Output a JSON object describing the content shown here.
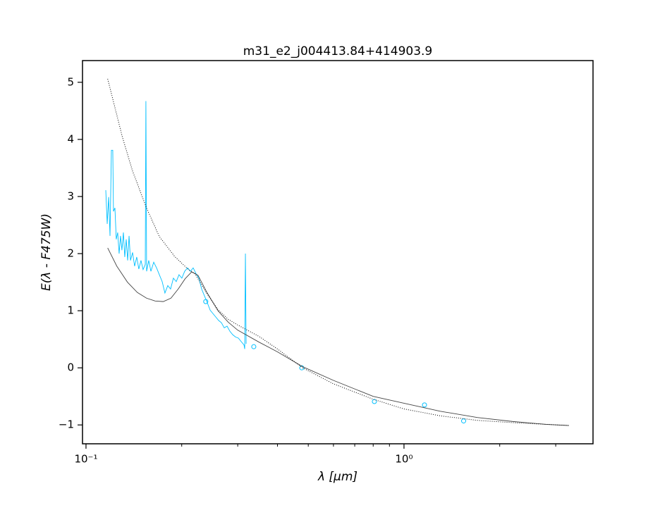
{
  "chart_data": {
    "type": "line",
    "title": "m31_e2_j004413.84+414903.9",
    "xlabel": "λ [μm]",
    "ylabel": "E(λ - F475W)",
    "xscale": "log",
    "xlim": [
      0.0975,
      3.93
    ],
    "ylim": [
      -1.33,
      5.38
    ],
    "xticks": [
      {
        "value": 0.1,
        "label": "10⁻¹"
      },
      {
        "value": 1,
        "label": "10⁰"
      }
    ],
    "xminorticks": [
      0.2,
      0.3,
      0.4,
      0.5,
      0.6,
      0.7,
      0.8,
      0.9,
      2,
      3
    ],
    "yticks": [
      {
        "value": -1,
        "label": "−1"
      },
      0,
      1,
      2,
      3,
      4,
      5
    ],
    "series": [
      {
        "style": "solid",
        "color": "#00bfff",
        "x": [
          0.1154,
          0.1166,
          0.1178,
          0.119,
          0.1202,
          0.1214,
          0.122,
          0.1233,
          0.1245,
          0.1258,
          0.1271,
          0.1284,
          0.1297,
          0.1311,
          0.1324,
          0.1338,
          0.1352,
          0.1366,
          0.138,
          0.1401,
          0.1422,
          0.1444,
          0.1466,
          0.1489,
          0.1512,
          0.1536,
          0.1543,
          0.1551,
          0.1575,
          0.16,
          0.1633,
          0.1667,
          0.1701,
          0.1736,
          0.1771,
          0.1808,
          0.1845,
          0.1883,
          0.1922,
          0.1961,
          0.2002,
          0.2043,
          0.2086,
          0.2129,
          0.2173,
          0.2218,
          0.2264,
          0.231,
          0.2358,
          0.2407,
          0.2457,
          0.2507,
          0.2559,
          0.2612,
          0.2666,
          0.2721,
          0.2777,
          0.2835,
          0.2893,
          0.2953,
          0.3014,
          0.3076,
          0.314,
          0.3156,
          0.3172,
          0.3188
        ],
        "values": [
          3.11,
          2.52,
          2.99,
          2.31,
          3.81,
          3.81,
          2.74,
          2.8,
          2.25,
          2.37,
          2.0,
          2.31,
          2.06,
          2.37,
          1.94,
          2.25,
          1.88,
          2.31,
          1.88,
          2.02,
          1.78,
          1.94,
          1.73,
          1.88,
          1.72,
          1.81,
          4.67,
          1.69,
          1.88,
          1.69,
          1.85,
          1.75,
          1.63,
          1.51,
          1.31,
          1.44,
          1.38,
          1.57,
          1.51,
          1.63,
          1.57,
          1.69,
          1.75,
          1.69,
          1.75,
          1.65,
          1.57,
          1.38,
          1.26,
          1.14,
          1.01,
          0.95,
          0.89,
          0.83,
          0.79,
          0.7,
          0.73,
          0.64,
          0.58,
          0.54,
          0.52,
          0.46,
          0.4,
          0.33,
          2.0,
          0.42
        ]
      },
      {
        "style": "markers",
        "color": "#00bfff",
        "x": [
          0.238,
          0.337,
          0.477,
          0.807,
          1.16,
          1.54
        ],
        "values": [
          1.16,
          0.37,
          0.0,
          -0.59,
          -0.65,
          -0.93
        ]
      },
      {
        "style": "solid",
        "color": "#444444",
        "x": [
          0.117,
          0.125,
          0.135,
          0.145,
          0.155,
          0.165,
          0.175,
          0.185,
          0.195,
          0.205,
          0.215,
          0.225,
          0.24,
          0.26,
          0.28,
          0.3,
          0.35,
          0.4,
          0.48,
          0.6,
          0.8,
          1.0,
          1.3,
          1.7,
          2.2,
          2.8,
          3.3
        ],
        "values": [
          2.1,
          1.78,
          1.5,
          1.32,
          1.22,
          1.17,
          1.16,
          1.22,
          1.38,
          1.56,
          1.68,
          1.62,
          1.32,
          1.0,
          0.8,
          0.66,
          0.45,
          0.28,
          0.02,
          -0.22,
          -0.5,
          -0.62,
          -0.76,
          -0.87,
          -0.94,
          -0.99,
          -1.01
        ]
      },
      {
        "style": "dotted",
        "color": "#000000",
        "x": [
          0.117,
          0.13,
          0.14,
          0.155,
          0.17,
          0.19,
          0.21,
          0.22,
          0.24,
          0.26,
          0.28,
          0.3,
          0.35,
          0.4,
          0.48,
          0.6,
          0.8,
          1.0,
          1.3,
          1.7,
          2.2,
          2.8,
          3.3
        ],
        "values": [
          5.06,
          4.05,
          3.45,
          2.8,
          2.3,
          1.95,
          1.72,
          1.65,
          1.3,
          1.02,
          0.85,
          0.75,
          0.55,
          0.33,
          0.0,
          -0.28,
          -0.55,
          -0.72,
          -0.84,
          -0.92,
          -0.96,
          -0.99,
          -1.01
        ]
      }
    ]
  }
}
